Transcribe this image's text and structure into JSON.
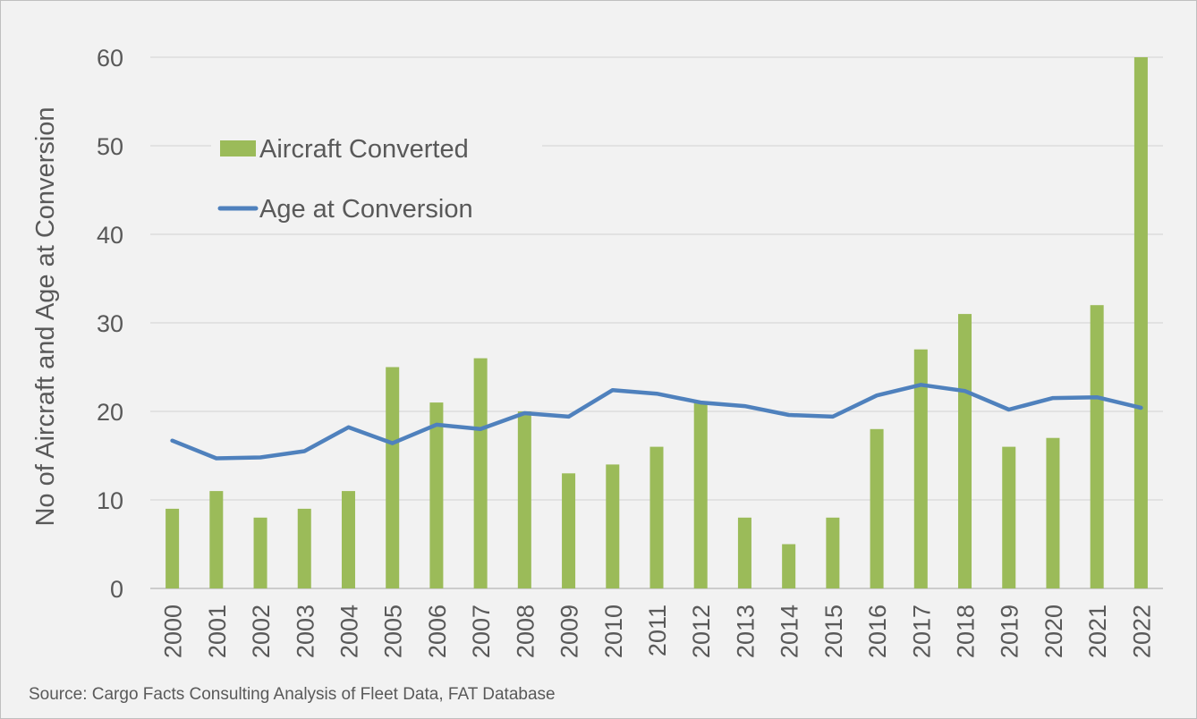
{
  "chart_data": {
    "type": "bar",
    "categories": [
      "2000",
      "2001",
      "2002",
      "2003",
      "2004",
      "2005",
      "2006",
      "2007",
      "2008",
      "2009",
      "2010",
      "2011",
      "2012",
      "2013",
      "2014",
      "2015",
      "2016",
      "2017",
      "2018",
      "2019",
      "2020",
      "2021",
      "2022"
    ],
    "series": [
      {
        "name": "Aircraft Converted",
        "type": "bar",
        "color": "#9bbb59",
        "values": [
          9,
          11,
          8,
          9,
          11,
          25,
          21,
          26,
          20,
          13,
          14,
          16,
          21,
          8,
          5,
          8,
          18,
          27,
          31,
          16,
          17,
          32,
          60
        ]
      },
      {
        "name": "Age at Conversion",
        "type": "line",
        "color": "#4f81bd",
        "values": [
          16.7,
          14.7,
          14.8,
          15.5,
          18.2,
          16.4,
          18.5,
          18.0,
          19.8,
          19.4,
          22.4,
          22.0,
          21.0,
          20.6,
          19.6,
          19.4,
          21.8,
          23.0,
          22.3,
          20.2,
          21.5,
          21.6,
          20.4
        ]
      }
    ],
    "ylabel": "No of Aircraft and Age at Conversion",
    "xlabel": "",
    "ylim": [
      0,
      60
    ],
    "yticks": [
      0,
      10,
      20,
      30,
      40,
      50,
      60
    ],
    "grid": true,
    "legend_position": "top-left"
  },
  "source_note": "Source: Cargo Facts Consulting Analysis of Fleet Data, FAT Database"
}
